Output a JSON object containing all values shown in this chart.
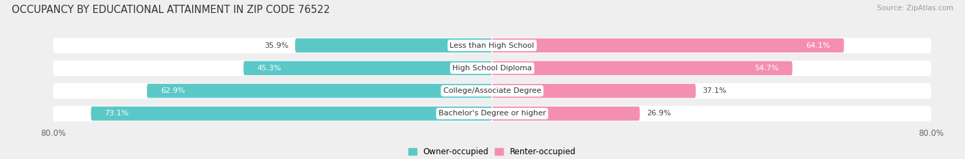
{
  "title": "OCCUPANCY BY EDUCATIONAL ATTAINMENT IN ZIP CODE 76522",
  "source": "Source: ZipAtlas.com",
  "categories": [
    "Less than High School",
    "High School Diploma",
    "College/Associate Degree",
    "Bachelor's Degree or higher"
  ],
  "owner_values": [
    35.9,
    45.3,
    62.9,
    73.1
  ],
  "renter_values": [
    64.1,
    54.7,
    37.1,
    26.9
  ],
  "owner_color": "#5bc8c8",
  "renter_color": "#f48fb1",
  "background_color": "#efefef",
  "bar_background": "#ffffff",
  "xlim_left": -80.0,
  "xlim_right": 80.0,
  "title_fontsize": 10.5,
  "label_fontsize": 8.0,
  "value_fontsize": 8.0,
  "legend_owner": "Owner-occupied",
  "legend_renter": "Renter-occupied",
  "x_tick_left": "80.0%",
  "x_tick_right": "80.0%"
}
